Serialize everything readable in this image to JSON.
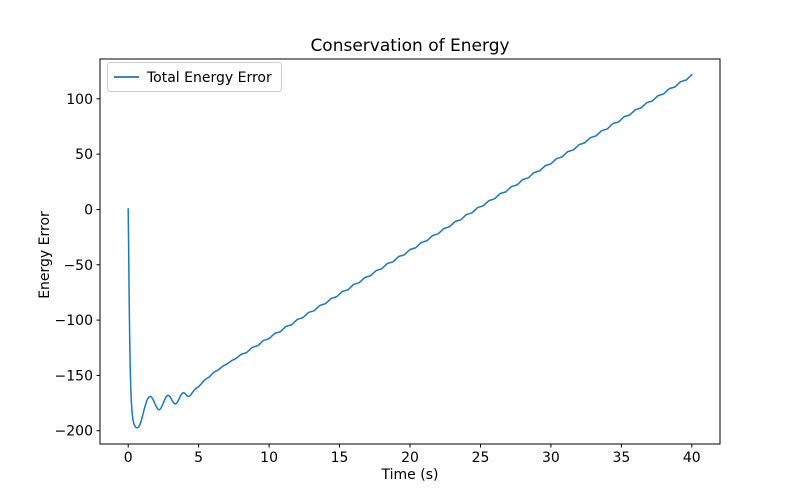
{
  "chart_data": {
    "type": "line",
    "title": "Conservation of Energy",
    "xlabel": "Time (s)",
    "ylabel": "Energy Error",
    "xlim": [
      -2,
      42
    ],
    "ylim": [
      -212,
      136
    ],
    "xticks": [
      0,
      5,
      10,
      15,
      20,
      25,
      30,
      35,
      40
    ],
    "yticks": [
      100,
      50,
      0,
      -50,
      -100,
      -150,
      -200
    ],
    "grid": false,
    "legend_position": "upper left",
    "legend_border_color": "#cccccc",
    "axis_color": "#000000",
    "background_color": "#ffffff",
    "series": [
      {
        "name": "Total Energy Error",
        "color": "#1f77b4",
        "line_width": 1.5,
        "points": [
          [
            0.0,
            0.5
          ],
          [
            0.03,
            -30.0
          ],
          [
            0.06,
            -70.0
          ],
          [
            0.1,
            -110.0
          ],
          [
            0.14,
            -140.0
          ],
          [
            0.18,
            -160.0
          ],
          [
            0.23,
            -175.0
          ],
          [
            0.28,
            -184.0
          ],
          [
            0.34,
            -190.0
          ],
          [
            0.41,
            -194.0
          ],
          [
            0.49,
            -196.2
          ],
          [
            0.57,
            -197.1
          ],
          [
            0.65,
            -197.3
          ],
          [
            0.73,
            -196.8
          ],
          [
            0.81,
            -195.2
          ],
          [
            0.89,
            -192.6
          ],
          [
            0.97,
            -189.0
          ],
          [
            1.06,
            -184.6
          ],
          [
            1.15,
            -180.1
          ],
          [
            1.24,
            -176.0
          ],
          [
            1.33,
            -172.7
          ],
          [
            1.42,
            -170.4
          ],
          [
            1.51,
            -169.2
          ],
          [
            1.59,
            -169.0
          ],
          [
            1.67,
            -169.9
          ],
          [
            1.76,
            -171.6
          ],
          [
            1.85,
            -174.1
          ],
          [
            1.94,
            -176.8
          ],
          [
            2.03,
            -179.1
          ],
          [
            2.11,
            -180.6
          ],
          [
            2.19,
            -181.1
          ],
          [
            2.27,
            -180.5
          ],
          [
            2.36,
            -178.8
          ],
          [
            2.45,
            -176.3
          ],
          [
            2.54,
            -173.5
          ],
          [
            2.63,
            -170.9
          ],
          [
            2.72,
            -168.9
          ],
          [
            2.81,
            -168.0
          ],
          [
            2.9,
            -168.3
          ],
          [
            2.99,
            -169.7
          ],
          [
            3.08,
            -171.8
          ],
          [
            3.17,
            -173.9
          ],
          [
            3.26,
            -175.3
          ],
          [
            3.35,
            -175.8
          ],
          [
            3.44,
            -175.1
          ],
          [
            3.53,
            -173.4
          ],
          [
            3.62,
            -171.0
          ],
          [
            3.71,
            -168.6
          ],
          [
            3.8,
            -166.7
          ],
          [
            3.89,
            -165.7
          ],
          [
            3.98,
            -165.8
          ],
          [
            4.07,
            -166.8
          ],
          [
            4.16,
            -168.2
          ],
          [
            4.25,
            -169.0
          ],
          [
            4.34,
            -168.9
          ],
          [
            4.43,
            -167.8
          ],
          [
            4.55,
            -165.6
          ],
          [
            4.7,
            -163.1
          ],
          [
            4.85,
            -161.4
          ],
          [
            5.0,
            -160.2
          ],
          [
            5.15,
            -158.2
          ],
          [
            5.3,
            -155.9
          ],
          [
            5.45,
            -153.9
          ],
          [
            5.6,
            -152.6
          ],
          [
            5.75,
            -151.4
          ],
          [
            5.9,
            -149.4
          ],
          [
            6.05,
            -147.5
          ],
          [
            6.2,
            -146.2
          ],
          [
            6.35,
            -145.4
          ],
          [
            6.5,
            -144.0
          ],
          [
            6.65,
            -142.3
          ],
          [
            6.8,
            -141.0
          ],
          [
            6.95,
            -140.2
          ],
          [
            7.1,
            -139.0
          ],
          [
            7.25,
            -137.4
          ],
          [
            7.4,
            -136.2
          ],
          [
            7.55,
            -135.4
          ],
          [
            7.7,
            -134.2
          ],
          [
            7.85,
            -132.6
          ],
          [
            8.0,
            -131.0
          ],
          [
            8.4,
            -129.4
          ],
          [
            8.8,
            -124.7
          ],
          [
            9.2,
            -123.1
          ],
          [
            9.6,
            -118.4
          ],
          [
            10.0,
            -116.8
          ],
          [
            10.4,
            -112.0
          ],
          [
            10.8,
            -110.5
          ],
          [
            11.2,
            -105.7
          ],
          [
            11.6,
            -104.2
          ],
          [
            12.0,
            -99.4
          ],
          [
            12.4,
            -97.8
          ],
          [
            12.8,
            -93.1
          ],
          [
            13.2,
            -91.5
          ],
          [
            13.6,
            -86.8
          ],
          [
            14.0,
            -85.2
          ],
          [
            14.4,
            -80.4
          ],
          [
            14.8,
            -78.9
          ],
          [
            15.2,
            -74.1
          ],
          [
            15.6,
            -72.6
          ],
          [
            16.0,
            -67.8
          ],
          [
            16.4,
            -66.2
          ],
          [
            16.8,
            -61.5
          ],
          [
            17.2,
            -59.9
          ],
          [
            17.6,
            -55.2
          ],
          [
            18.0,
            -53.6
          ],
          [
            18.4,
            -48.8
          ],
          [
            18.8,
            -47.3
          ],
          [
            19.2,
            -42.5
          ],
          [
            19.6,
            -41.0
          ],
          [
            20.0,
            -36.2
          ],
          [
            20.4,
            -34.6
          ],
          [
            20.8,
            -29.9
          ],
          [
            21.2,
            -28.3
          ],
          [
            21.6,
            -23.6
          ],
          [
            22.0,
            -22.0
          ],
          [
            22.4,
            -17.2
          ],
          [
            22.8,
            -15.7
          ],
          [
            23.2,
            -10.9
          ],
          [
            23.6,
            -9.4
          ],
          [
            24.0,
            -4.6
          ],
          [
            24.4,
            -3.0
          ],
          [
            24.8,
            1.7
          ],
          [
            25.2,
            3.3
          ],
          [
            25.6,
            8.0
          ],
          [
            26.0,
            9.6
          ],
          [
            26.4,
            14.4
          ],
          [
            26.8,
            15.9
          ],
          [
            27.2,
            20.7
          ],
          [
            27.6,
            22.2
          ],
          [
            28.0,
            27.0
          ],
          [
            28.4,
            28.6
          ],
          [
            28.8,
            33.3
          ],
          [
            29.2,
            34.9
          ],
          [
            29.6,
            39.6
          ],
          [
            30.0,
            41.2
          ],
          [
            30.4,
            46.0
          ],
          [
            30.8,
            47.5
          ],
          [
            31.2,
            52.3
          ],
          [
            31.6,
            53.8
          ],
          [
            32.0,
            58.6
          ],
          [
            32.4,
            60.2
          ],
          [
            32.8,
            64.9
          ],
          [
            33.2,
            66.5
          ],
          [
            33.6,
            71.2
          ],
          [
            34.0,
            72.8
          ],
          [
            34.4,
            77.6
          ],
          [
            34.8,
            79.1
          ],
          [
            35.2,
            83.9
          ],
          [
            35.6,
            85.4
          ],
          [
            36.0,
            90.2
          ],
          [
            36.4,
            91.8
          ],
          [
            36.8,
            96.5
          ],
          [
            37.2,
            98.1
          ],
          [
            37.6,
            102.8
          ],
          [
            38.0,
            104.4
          ],
          [
            38.4,
            109.2
          ],
          [
            38.8,
            110.7
          ],
          [
            39.2,
            115.5
          ],
          [
            39.6,
            117.0
          ],
          [
            40.0,
            121.8
          ]
        ]
      }
    ]
  }
}
